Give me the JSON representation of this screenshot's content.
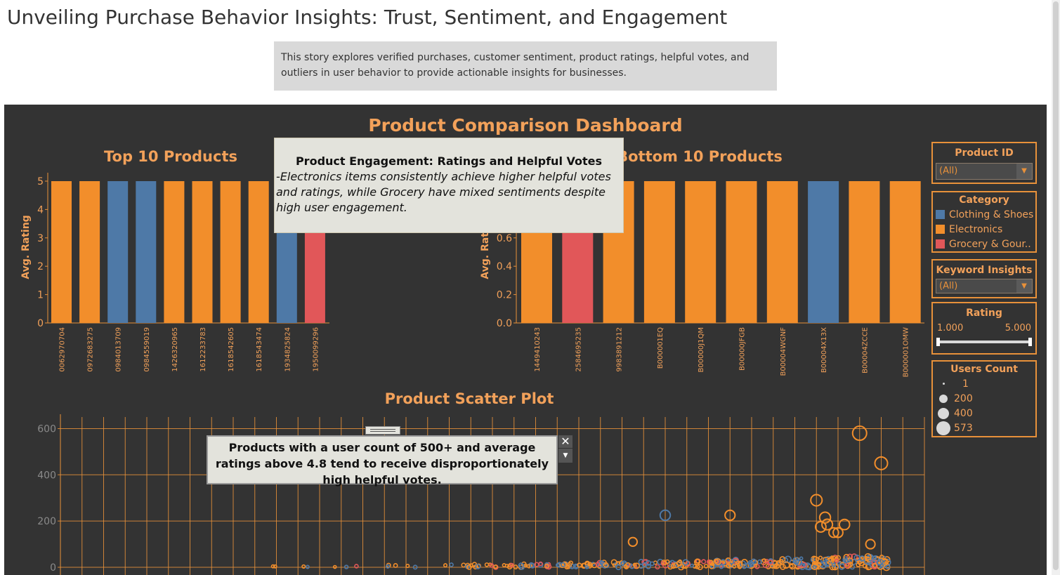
{
  "story": {
    "title": "Unveiling Purchase Behavior Insights: Trust, Sentiment, and Engagement",
    "description": "This story explores verified purchases, customer sentiment, product ratings, helpful votes, and outliers in user behavior to provide actionable insights for businesses."
  },
  "dashboard": {
    "title": "Product Comparison Dashboard"
  },
  "colors": {
    "clothing": "#4e79a7",
    "electronics": "#f28e2b",
    "grocery": "#e15759",
    "accent": "#e8913a",
    "background": "#333333"
  },
  "chart_data": [
    {
      "type": "bar",
      "title": "Top 10 Products",
      "ylabel": "Avg. Rating",
      "ylim": [
        0,
        5
      ],
      "yticks": [
        "0",
        "1",
        "2",
        "3",
        "4",
        "5"
      ],
      "categories": [
        "0062970704",
        "0972683275",
        "0984013709",
        "0984559019",
        "1426320965",
        "1612233783",
        "1618542605",
        "1618543474",
        "1934825824",
        "1950099296"
      ],
      "values": [
        5,
        5,
        5,
        5,
        5,
        5,
        5,
        5,
        5,
        5
      ],
      "category_of_bar": [
        "Electronics",
        "Electronics",
        "Clothing & Shoes",
        "Clothing & Shoes",
        "Electronics",
        "Electronics",
        "Electronics",
        "Electronics",
        "Clothing & Shoes",
        "Grocery & Gour.."
      ]
    },
    {
      "type": "bar",
      "title": "Bottom 10 Products",
      "ylabel": "Avg. Rating",
      "ylim": [
        0,
        1
      ],
      "yticks": [
        "0.0",
        "0.2",
        "0.4",
        "0.6",
        "0.8"
      ],
      "categories": [
        "1449410243",
        "2584695235",
        "9983891212",
        "B000001EQ",
        "B00000J1QM",
        "B00000JFGB",
        "B00004WGNF",
        "B00004X13X",
        "B00004ZCCE",
        "B000001OMW"
      ],
      "values": [
        1,
        1,
        1,
        1,
        1,
        1,
        1,
        1,
        1,
        1
      ],
      "category_of_bar": [
        "Electronics",
        "Grocery & Gour..",
        "Electronics",
        "Electronics",
        "Electronics",
        "Electronics",
        "Electronics",
        "Clothing & Shoes",
        "Electronics",
        "Electronics"
      ]
    },
    {
      "type": "scatter",
      "title": "Product Scatter Plot",
      "ylim": [
        0,
        650
      ],
      "yticks": [
        "0",
        "200",
        "400",
        "600"
      ],
      "outliers": [
        {
          "x": 37,
          "y": 580,
          "category": "Electronics",
          "users": 573
        },
        {
          "x": 38,
          "y": 450,
          "category": "Electronics",
          "users": 420
        },
        {
          "x": 35,
          "y": 290,
          "category": "Electronics",
          "users": 300
        },
        {
          "x": 35.4,
          "y": 215,
          "category": "Electronics",
          "users": 260
        },
        {
          "x": 35.5,
          "y": 185,
          "category": "Electronics",
          "users": 240
        },
        {
          "x": 35.2,
          "y": 175,
          "category": "Electronics",
          "users": 230
        },
        {
          "x": 36.3,
          "y": 185,
          "category": "Electronics",
          "users": 220
        },
        {
          "x": 31,
          "y": 225,
          "category": "Electronics",
          "users": 200
        },
        {
          "x": 28,
          "y": 225,
          "category": "Clothing & Shoes",
          "users": 210
        },
        {
          "x": 36,
          "y": 150,
          "category": "Electronics",
          "users": 180
        },
        {
          "x": 35.8,
          "y": 150,
          "category": "Electronics",
          "users": 170
        },
        {
          "x": 37.5,
          "y": 100,
          "category": "Electronics",
          "users": 150
        },
        {
          "x": 26.5,
          "y": 110,
          "category": "Electronics",
          "users": 120
        }
      ]
    }
  ],
  "annotations": {
    "engagement_title": "Product Engagement: Ratings and Helpful Votes",
    "engagement_body": "-Electronics items consistently achieve higher helpful votes and ratings, while Grocery have mixed sentiments despite high user engagement.",
    "scatter_note": "Products with a user count of 500+ and average ratings above 4.8 tend to receive disproportionately high helpful votes."
  },
  "filters": {
    "product_id": {
      "title": "Product ID",
      "value": "(All)"
    },
    "category": {
      "title": "Category",
      "items": [
        {
          "label": "Clothing & Shoes",
          "color": "#4e79a7"
        },
        {
          "label": "Electronics",
          "color": "#f28e2b"
        },
        {
          "label": "Grocery & Gour..",
          "color": "#e15759"
        }
      ]
    },
    "keyword": {
      "title": "Keyword Insights",
      "value": "(All)"
    },
    "rating": {
      "title": "Rating",
      "min": "1.000",
      "max": "5.000"
    },
    "users_count": {
      "title": "Users Count",
      "items": [
        "1",
        "200",
        "400",
        "573"
      ]
    }
  }
}
